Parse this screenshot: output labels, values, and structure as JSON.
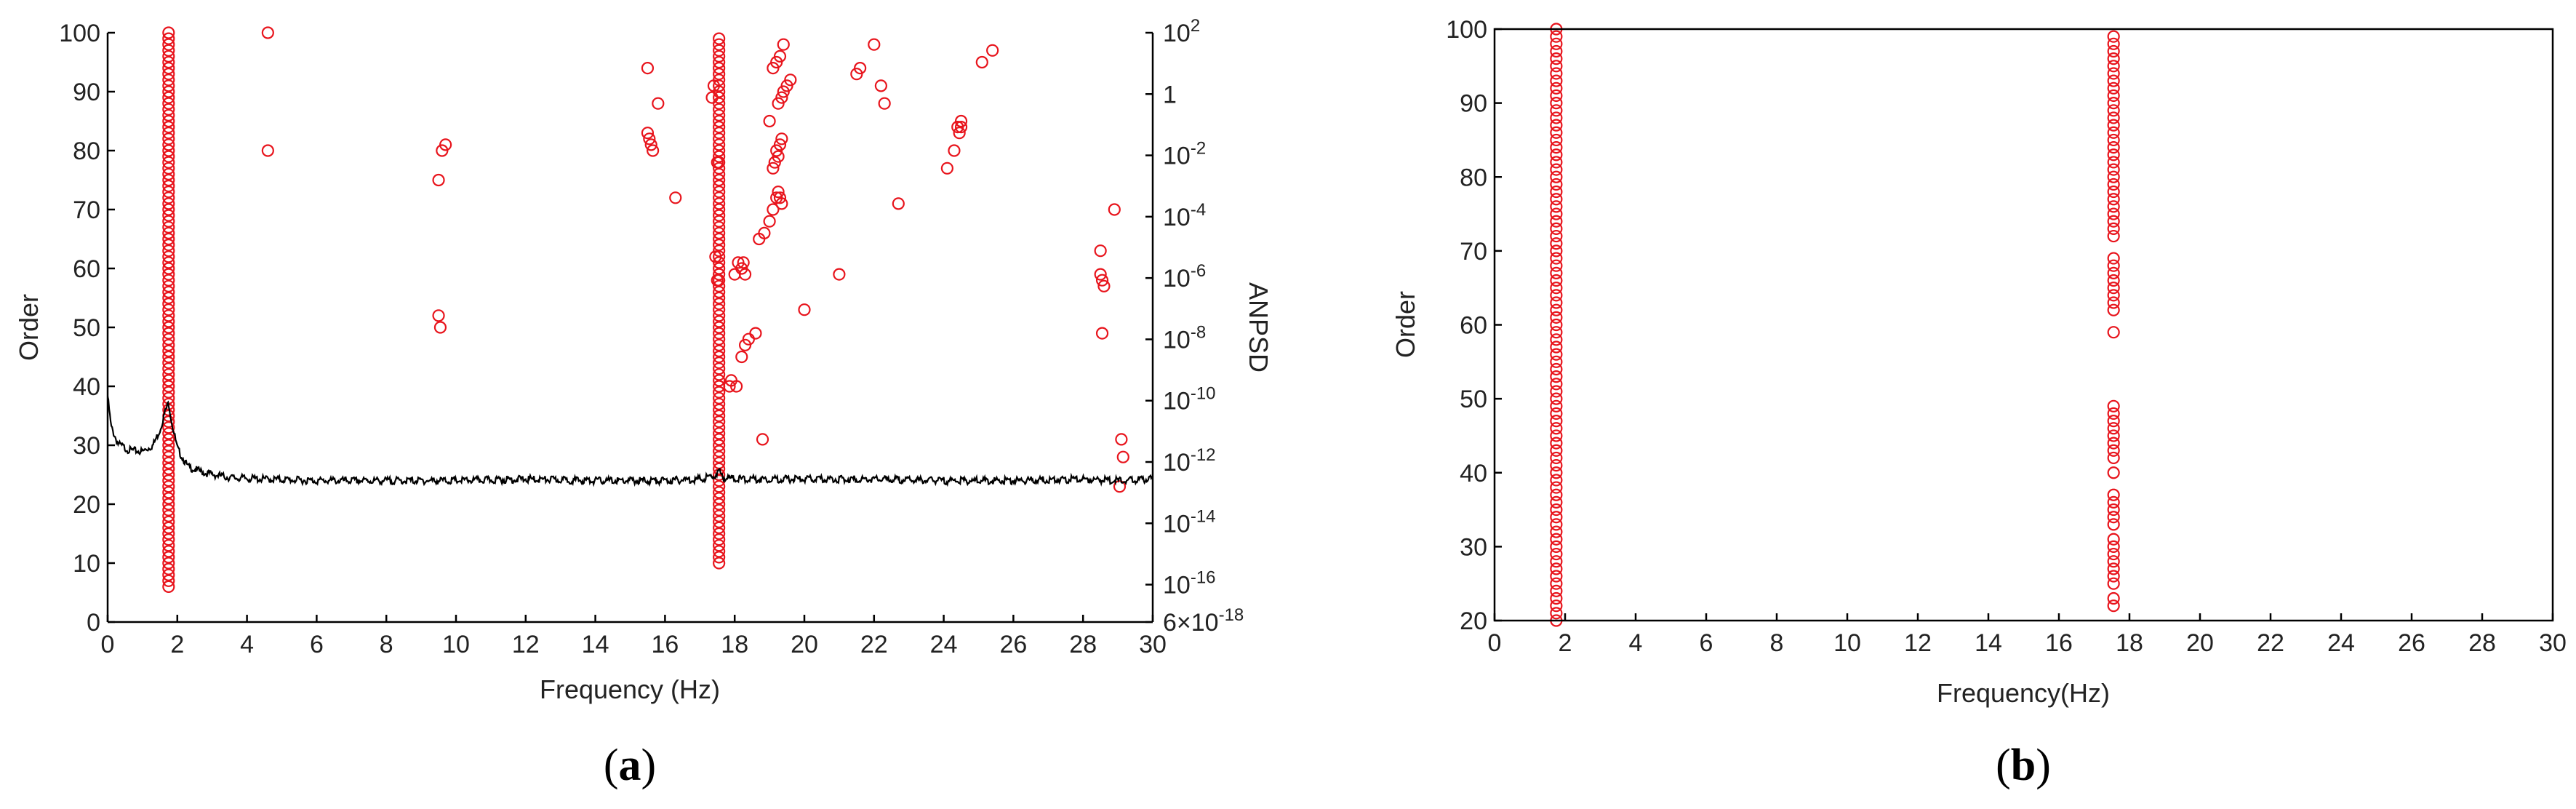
{
  "panels": [
    {
      "id": "a",
      "label": "a",
      "label_open": "(",
      "label_close": ")",
      "xlabel": "Frequency (Hz)",
      "ylabel": "Order",
      "y2label": "ANPSD",
      "xticks": [
        "0",
        "2",
        "4",
        "6",
        "8",
        "10",
        "12",
        "14",
        "16",
        "18",
        "20",
        "22",
        "24",
        "26",
        "28",
        "30"
      ],
      "yticks": [
        "0",
        "10",
        "20",
        "30",
        "40",
        "50",
        "60",
        "70",
        "80",
        "90",
        "100"
      ],
      "y2ticks": [
        {
          "label": "10",
          "exp": "2"
        },
        {
          "label": "1",
          "exp": ""
        },
        {
          "label": "10",
          "exp": "-2"
        },
        {
          "label": "10",
          "exp": "-4"
        },
        {
          "label": "10",
          "exp": "-6"
        },
        {
          "label": "10",
          "exp": "-8"
        },
        {
          "label": "10",
          "exp": "-10"
        },
        {
          "label": "10",
          "exp": "-12"
        },
        {
          "label": "10",
          "exp": "-14"
        },
        {
          "label": "10",
          "exp": "-16"
        },
        {
          "label": "6×10",
          "exp": "-18"
        }
      ]
    },
    {
      "id": "b",
      "label": "b",
      "label_open": "(",
      "label_close": ")",
      "xlabel": "Frequency(Hz)",
      "ylabel": "Order",
      "xticks": [
        "0",
        "2",
        "4",
        "6",
        "8",
        "10",
        "12",
        "14",
        "16",
        "18",
        "20",
        "22",
        "24",
        "26",
        "28",
        "30"
      ],
      "yticks": [
        "20",
        "30",
        "40",
        "50",
        "60",
        "70",
        "80",
        "90",
        "100"
      ]
    }
  ],
  "chart_data": [
    {
      "type": "scatter",
      "panel": "a",
      "title": "",
      "xlabel": "Frequency (Hz)",
      "ylabel": "Order",
      "y2label": "ANPSD",
      "xlim": [
        0,
        30
      ],
      "ylim": [
        0,
        100
      ],
      "y2lim_log10": [
        -17.22,
        2
      ],
      "grid": false,
      "stable_modes_column1": {
        "x": 1.75,
        "order_from": 6,
        "order_to": 100,
        "order_step": 1
      },
      "stable_modes_column2": {
        "x": 17.55,
        "order_from": 10,
        "order_to": 99,
        "order_step": 1
      },
      "scatter_points": [
        [
          4.6,
          100
        ],
        [
          4.6,
          80
        ],
        [
          9.5,
          75
        ],
        [
          9.6,
          80
        ],
        [
          9.7,
          81
        ],
        [
          9.5,
          52
        ],
        [
          9.55,
          50
        ],
        [
          15.5,
          94
        ],
        [
          15.5,
          83
        ],
        [
          15.55,
          82
        ],
        [
          15.6,
          81
        ],
        [
          15.65,
          80
        ],
        [
          15.8,
          88
        ],
        [
          16.3,
          72
        ],
        [
          17.4,
          91
        ],
        [
          17.35,
          89
        ],
        [
          17.5,
          78
        ],
        [
          17.45,
          62
        ],
        [
          17.5,
          58
        ],
        [
          17.85,
          40
        ],
        [
          17.9,
          41
        ],
        [
          18.05,
          40
        ],
        [
          18.2,
          45
        ],
        [
          18.3,
          47
        ],
        [
          18.4,
          48
        ],
        [
          18.6,
          49
        ],
        [
          18.0,
          59
        ],
        [
          18.1,
          61
        ],
        [
          18.2,
          60
        ],
        [
          18.25,
          61
        ],
        [
          18.3,
          59
        ],
        [
          18.7,
          65
        ],
        [
          18.85,
          66
        ],
        [
          19.0,
          68
        ],
        [
          19.1,
          70
        ],
        [
          19.2,
          72
        ],
        [
          19.25,
          73
        ],
        [
          19.3,
          72
        ],
        [
          19.35,
          71
        ],
        [
          19.1,
          77
        ],
        [
          19.15,
          78
        ],
        [
          19.2,
          80
        ],
        [
          19.25,
          79
        ],
        [
          19.3,
          81
        ],
        [
          19.35,
          82
        ],
        [
          19.0,
          85
        ],
        [
          19.25,
          88
        ],
        [
          19.35,
          89
        ],
        [
          19.4,
          90
        ],
        [
          19.5,
          91
        ],
        [
          19.6,
          92
        ],
        [
          19.1,
          94
        ],
        [
          19.2,
          95
        ],
        [
          19.3,
          96
        ],
        [
          19.4,
          98
        ],
        [
          18.8,
          31
        ],
        [
          20.0,
          53
        ],
        [
          21.0,
          59
        ],
        [
          21.5,
          93
        ],
        [
          21.6,
          94
        ],
        [
          22.0,
          98
        ],
        [
          22.2,
          91
        ],
        [
          22.3,
          88
        ],
        [
          22.7,
          71
        ],
        [
          24.1,
          77
        ],
        [
          24.3,
          80
        ],
        [
          24.45,
          83
        ],
        [
          24.5,
          84
        ],
        [
          24.5,
          85
        ],
        [
          24.4,
          84
        ],
        [
          25.1,
          95
        ],
        [
          25.4,
          97
        ],
        [
          28.5,
          63
        ],
        [
          28.55,
          58
        ],
        [
          28.6,
          57
        ],
        [
          28.5,
          59
        ],
        [
          28.55,
          49
        ],
        [
          28.9,
          70
        ],
        [
          29.1,
          31
        ],
        [
          29.15,
          28
        ],
        [
          29.05,
          23
        ]
      ],
      "anpsd_curve": {
        "description_values": "ANPSD trace (log10 units): peaks near 1.75 Hz, smaller bump near 17.6 Hz, flat baseline elsewhere",
        "x": [
          0,
          0.1,
          0.3,
          0.6,
          1.0,
          1.3,
          1.5,
          1.65,
          1.75,
          1.85,
          2.0,
          2.3,
          2.8,
          3.5,
          4.5,
          6,
          8,
          10,
          12,
          14,
          16,
          17.0,
          17.4,
          17.55,
          17.7,
          18.2,
          20,
          22,
          24,
          26,
          28,
          29,
          30
        ],
        "log10_anpsd": [
          -9.8,
          -10.8,
          -11.35,
          -11.55,
          -11.6,
          -11.4,
          -10.9,
          -10.3,
          -10.0,
          -10.7,
          -11.5,
          -12.1,
          -12.3,
          -12.45,
          -12.5,
          -12.55,
          -12.55,
          -12.55,
          -12.5,
          -12.55,
          -12.55,
          -12.5,
          -12.4,
          -12.25,
          -12.45,
          -12.5,
          -12.5,
          -12.5,
          -12.55,
          -12.55,
          -12.5,
          -12.55,
          -12.5
        ]
      }
    },
    {
      "type": "scatter",
      "panel": "b",
      "title": "",
      "xlabel": "Frequency(Hz)",
      "ylabel": "Order",
      "xlim": [
        0,
        30
      ],
      "ylim": [
        20,
        100
      ],
      "grid": false,
      "stable_modes_column1": {
        "x": 1.75,
        "order_from": 20,
        "order_to": 100,
        "order_step": 1
      },
      "stable_modes_column2": {
        "x": 17.55,
        "orders": [
          22,
          23,
          25,
          26,
          27,
          28,
          29,
          30,
          31,
          33,
          34,
          35,
          36,
          37,
          40,
          42,
          43,
          44,
          45,
          46,
          47,
          48,
          49,
          59,
          62,
          63,
          64,
          65,
          66,
          67,
          68,
          69,
          72,
          73,
          74,
          75,
          76,
          77,
          78,
          79,
          80,
          81,
          82,
          83,
          84,
          85,
          86,
          87,
          88,
          89,
          90,
          91,
          92,
          93,
          94,
          95,
          96,
          97,
          98,
          99
        ]
      }
    }
  ]
}
